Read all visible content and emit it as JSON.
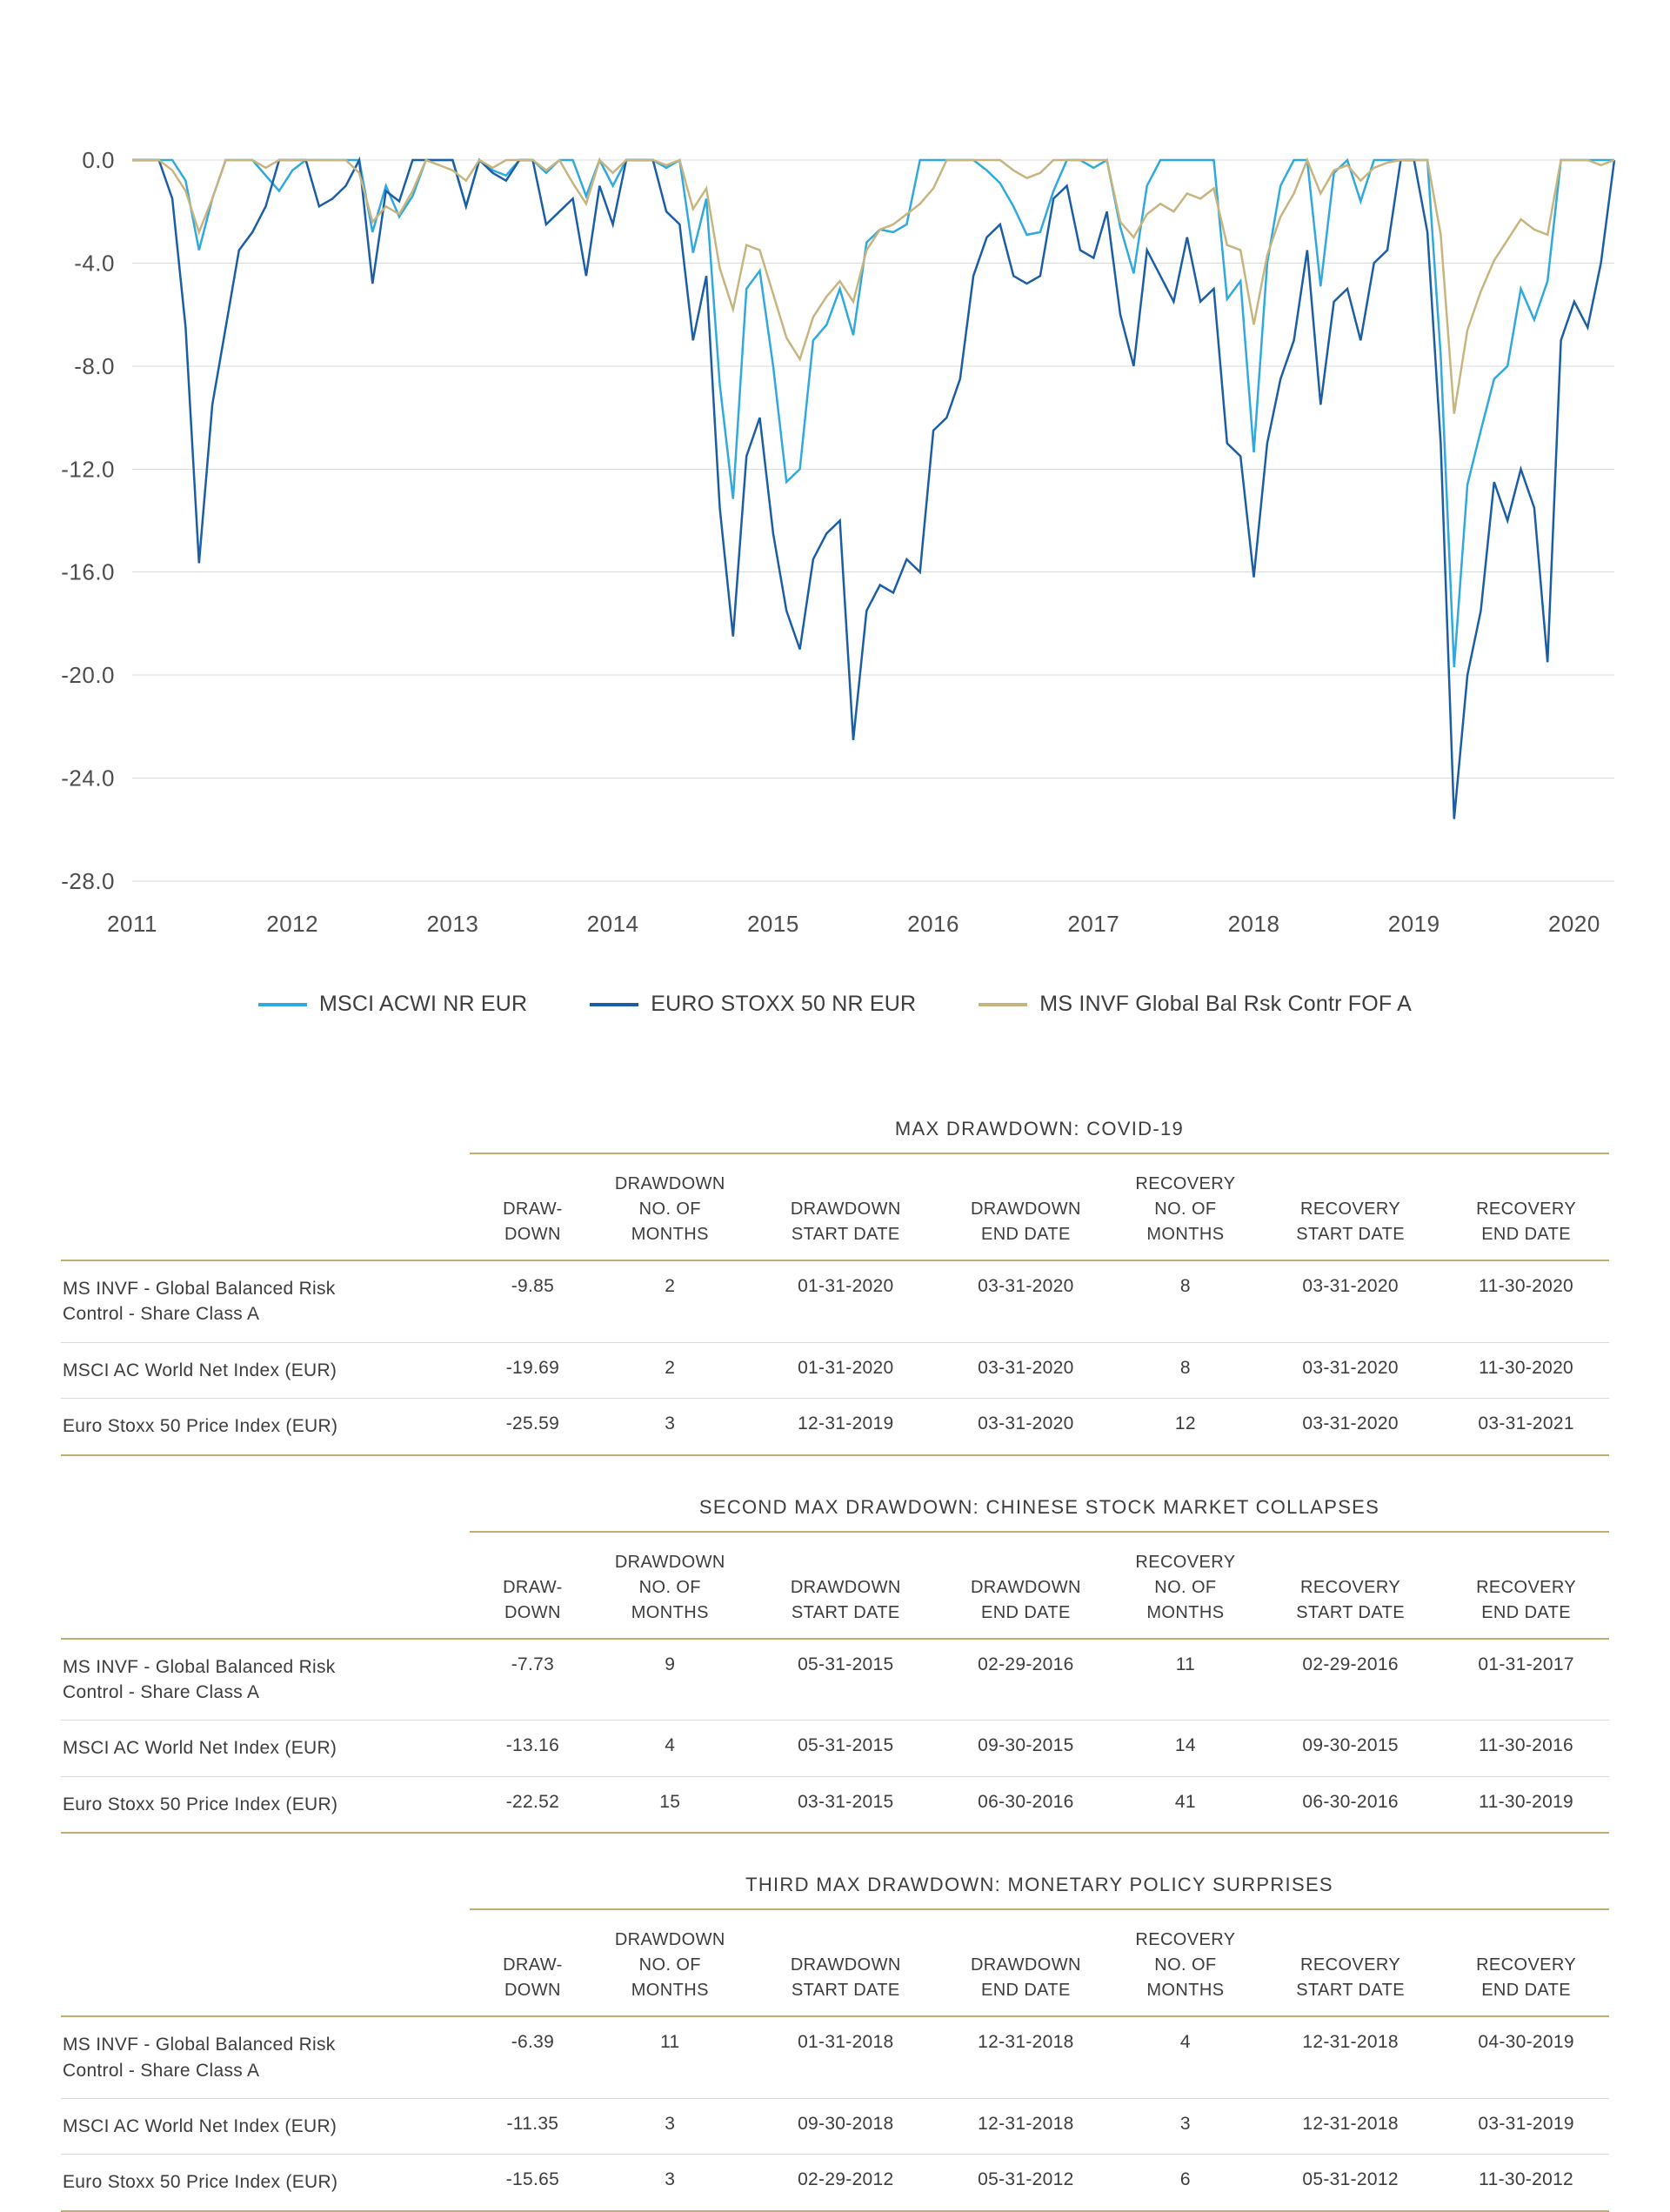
{
  "colors": {
    "msci_acwi_line": "#2FA9DE",
    "euro_stoxx_line": "#1B5EA6",
    "ms_invf_line": "#C7B47E",
    "rule_gold": "#C3AE6F",
    "row_divider": "#DBDBDB",
    "grid": "#DBDBDB",
    "tick_text": "#4D4D4D",
    "text": "#3D3D3D"
  },
  "chart_data": {
    "type": "line",
    "title": "",
    "xlabel": "",
    "ylabel": "",
    "grid": true,
    "legend_position": "bottom",
    "ylim": [
      -28,
      0
    ],
    "y_ticks": [
      0,
      -4,
      -8,
      -12,
      -16,
      -20,
      -24,
      -28
    ],
    "x_frequency": "monthly",
    "x_start_month": "2011-12",
    "x_end_month": "2021-03",
    "x_tick_labels": [
      "2011",
      "2012",
      "2013",
      "2014",
      "2015",
      "2016",
      "2017",
      "2018",
      "2019",
      "2020"
    ],
    "x_tick_indices": [
      0,
      12,
      24,
      36,
      48,
      60,
      72,
      84,
      96,
      108
    ],
    "series": [
      {
        "name": "MSCI ACWI NR EUR",
        "color": "#2FA9DE",
        "values": [
          0,
          0,
          0,
          0,
          -0.8,
          -3.5,
          -1.5,
          0,
          0,
          0,
          -0.6,
          -1.2,
          -0.4,
          0,
          0,
          0,
          0,
          0,
          -2.8,
          -1.0,
          -2.2,
          -1.4,
          0,
          0,
          0,
          -1.8,
          0,
          -0.4,
          -0.6,
          0,
          0,
          -0.5,
          0,
          0,
          -1.4,
          0,
          -1.0,
          0,
          0,
          0,
          -0.3,
          0,
          -3.6,
          -1.5,
          -8.7,
          -13.16,
          -5.0,
          -4.3,
          -8.0,
          -12.5,
          -12.0,
          -7.0,
          -6.4,
          -5.0,
          -6.8,
          -3.2,
          -2.7,
          -2.8,
          -2.5,
          0,
          0,
          0,
          0,
          0,
          -0.4,
          -0.9,
          -1.8,
          -2.9,
          -2.8,
          -1.2,
          0,
          0,
          -0.3,
          0,
          -2.6,
          -4.4,
          -1.0,
          0,
          0,
          0,
          0,
          0,
          -5.4,
          -4.7,
          -11.35,
          -4.0,
          -1.0,
          0,
          0,
          -4.9,
          -0.5,
          0,
          -1.6,
          0,
          0,
          0,
          0,
          0,
          -7.6,
          -19.69,
          -12.6,
          -10.5,
          -8.5,
          -8.0,
          -5.0,
          -6.2,
          -4.7,
          0,
          0,
          0,
          0,
          0
        ]
      },
      {
        "name": "EURO STOXX 50 NR EUR",
        "color": "#1B5EA6",
        "values": [
          0,
          0,
          0,
          -1.5,
          -6.5,
          -15.65,
          -9.5,
          -6.5,
          -3.5,
          -2.8,
          -1.8,
          0,
          0,
          0,
          -1.8,
          -1.5,
          -1.0,
          0,
          -4.8,
          -1.2,
          -1.6,
          0,
          0,
          0,
          0,
          -1.8,
          0,
          -0.5,
          -0.8,
          0,
          0,
          -2.5,
          -2.0,
          -1.5,
          -4.5,
          -1.0,
          -2.5,
          0,
          0,
          0,
          -2.0,
          -2.5,
          -7.0,
          -4.5,
          -13.5,
          -18.5,
          -11.5,
          -10.0,
          -14.5,
          -17.5,
          -19.0,
          -15.5,
          -14.5,
          -14.0,
          -22.52,
          -17.5,
          -16.5,
          -16.8,
          -15.5,
          -16.0,
          -10.5,
          -10.0,
          -8.5,
          -4.5,
          -3.0,
          -2.5,
          -4.5,
          -4.8,
          -4.5,
          -1.5,
          -1.0,
          -3.5,
          -3.8,
          -2.0,
          -6.0,
          -8.0,
          -3.5,
          -4.5,
          -5.5,
          -3.0,
          -5.5,
          -5.0,
          -11.0,
          -11.5,
          -16.2,
          -11.0,
          -8.5,
          -7.0,
          -3.5,
          -9.5,
          -5.5,
          -5.0,
          -7.0,
          -4.0,
          -3.5,
          0,
          0,
          -2.8,
          -11.0,
          -25.59,
          -20.0,
          -17.5,
          -12.5,
          -14.0,
          -12.0,
          -13.5,
          -19.5,
          -7.0,
          -5.5,
          -6.5,
          -4.0,
          0
        ]
      },
      {
        "name": "MS INVF Global Bal Rsk Contr FOF A",
        "color": "#C7B47E",
        "values": [
          0,
          0,
          0,
          -0.4,
          -1.2,
          -2.8,
          -1.5,
          0,
          0,
          0,
          -0.3,
          0,
          0,
          0,
          0,
          0,
          0,
          -0.5,
          -2.4,
          -1.8,
          -2.1,
          -1.2,
          0,
          -0.2,
          -0.4,
          -0.8,
          0,
          -0.3,
          0,
          0,
          0,
          -0.4,
          0,
          -0.9,
          -1.7,
          0,
          -0.5,
          0,
          0,
          0,
          -0.2,
          0,
          -1.9,
          -1.1,
          -4.2,
          -5.8,
          -3.3,
          -3.5,
          -5.2,
          -6.9,
          -7.73,
          -6.1,
          -5.3,
          -4.7,
          -5.5,
          -3.5,
          -2.7,
          -2.5,
          -2.1,
          -1.7,
          -1.1,
          0,
          0,
          0,
          0,
          0,
          -0.4,
          -0.7,
          -0.5,
          0,
          0,
          0,
          0,
          0,
          -2.4,
          -3.0,
          -2.1,
          -1.7,
          -2.0,
          -1.3,
          -1.5,
          -1.1,
          -3.3,
          -3.5,
          -6.39,
          -3.7,
          -2.2,
          -1.3,
          0,
          -1.3,
          -0.4,
          -0.2,
          -0.8,
          -0.3,
          -0.1,
          0,
          0,
          0,
          -2.9,
          -9.85,
          -6.6,
          -5.1,
          -3.9,
          -3.1,
          -2.3,
          -2.7,
          -2.9,
          0,
          0,
          0,
          -0.2,
          0
        ]
      }
    ]
  },
  "tables": [
    {
      "title": "MAX DRAWDOWN: COVID-19",
      "columns": [
        "",
        "DRAW-\nDOWN",
        "DRAWDOWN\nNO. OF\nMONTHS",
        "DRAWDOWN\nSTART DATE",
        "DRAWDOWN\nEND DATE",
        "RECOVERY\nNO. OF\nMONTHS",
        "RECOVERY\nSTART DATE",
        "RECOVERY\nEND DATE"
      ],
      "rows": [
        [
          "MS INVF - Global Balanced Risk Control - Share Class A",
          "-9.85",
          "2",
          "01-31-2020",
          "03-31-2020",
          "8",
          "03-31-2020",
          "11-30-2020"
        ],
        [
          "MSCI AC World Net Index (EUR)",
          "-19.69",
          "2",
          "01-31-2020",
          "03-31-2020",
          "8",
          "03-31-2020",
          "11-30-2020"
        ],
        [
          "Euro Stoxx 50 Price Index (EUR)",
          "-25.59",
          "3",
          "12-31-2019",
          "03-31-2020",
          "12",
          "03-31-2020",
          "03-31-2021"
        ]
      ]
    },
    {
      "title": "SECOND MAX DRAWDOWN: CHINESE STOCK MARKET COLLAPSES",
      "columns": [
        "",
        "DRAW-\nDOWN",
        "DRAWDOWN\nNO. OF\nMONTHS",
        "DRAWDOWN\nSTART DATE",
        "DRAWDOWN\nEND DATE",
        "RECOVERY\nNO. OF\nMONTHS",
        "RECOVERY\nSTART DATE",
        "RECOVERY\nEND DATE"
      ],
      "rows": [
        [
          "MS INVF - Global Balanced Risk Control - Share Class A",
          "-7.73",
          "9",
          "05-31-2015",
          "02-29-2016",
          "11",
          "02-29-2016",
          "01-31-2017"
        ],
        [
          "MSCI AC World Net Index (EUR)",
          "-13.16",
          "4",
          "05-31-2015",
          "09-30-2015",
          "14",
          "09-30-2015",
          "11-30-2016"
        ],
        [
          "Euro Stoxx 50 Price Index (EUR)",
          "-22.52",
          "15",
          "03-31-2015",
          "06-30-2016",
          "41",
          "06-30-2016",
          "11-30-2019"
        ]
      ]
    },
    {
      "title": "THIRD MAX DRAWDOWN: MONETARY POLICY SURPRISES",
      "columns": [
        "",
        "DRAW-\nDOWN",
        "DRAWDOWN\nNO. OF\nMONTHS",
        "DRAWDOWN\nSTART DATE",
        "DRAWDOWN\nEND DATE",
        "RECOVERY\nNO. OF\nMONTHS",
        "RECOVERY\nSTART DATE",
        "RECOVERY\nEND DATE"
      ],
      "rows": [
        [
          "MS INVF - Global Balanced Risk Control - Share Class A",
          "-6.39",
          "11",
          "01-31-2018",
          "12-31-2018",
          "4",
          "12-31-2018",
          "04-30-2019"
        ],
        [
          "MSCI AC World Net Index (EUR)",
          "-11.35",
          "3",
          "09-30-2018",
          "12-31-2018",
          "3",
          "12-31-2018",
          "03-31-2019"
        ],
        [
          "Euro Stoxx 50 Price Index (EUR)",
          "-15.65",
          "3",
          "02-29-2012",
          "05-31-2012",
          "6",
          "05-31-2012",
          "11-30-2012"
        ]
      ]
    }
  ]
}
